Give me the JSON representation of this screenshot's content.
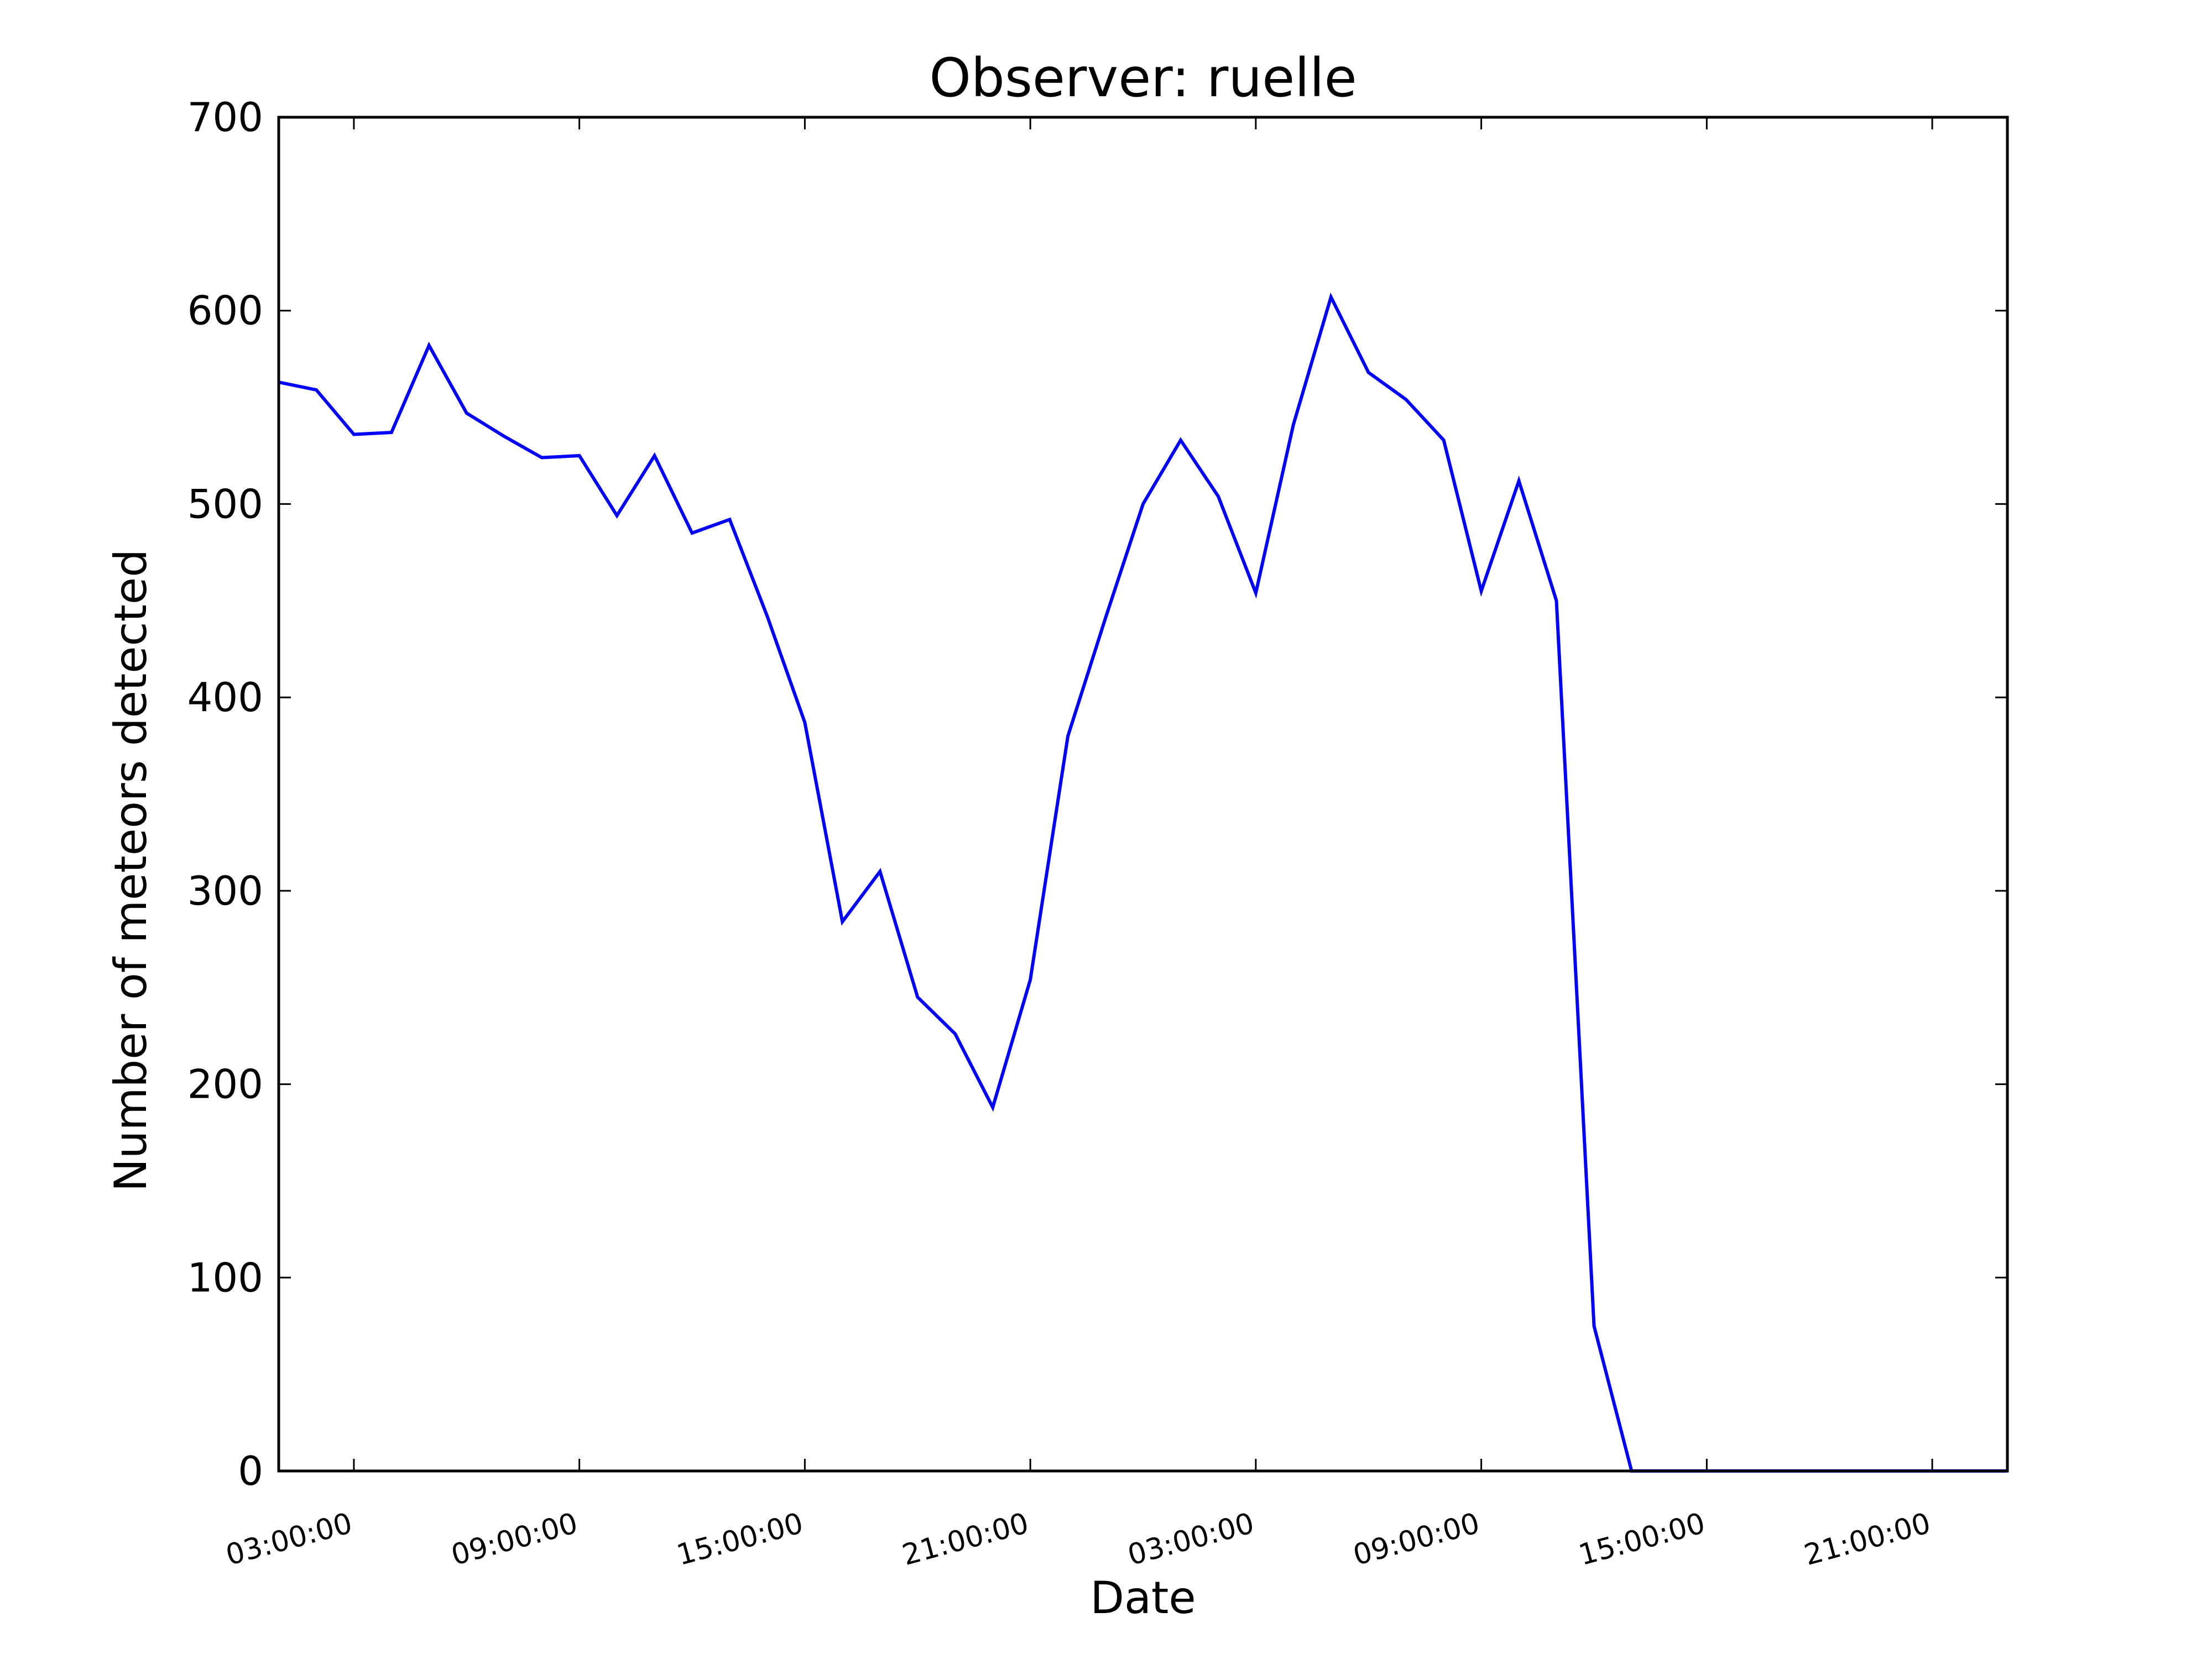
{
  "chart_data": {
    "type": "line",
    "title": "Observer: ruelle",
    "xlabel": "Date",
    "ylabel": "Number of meteors detected",
    "x_unit": "hours",
    "x_tick_labels": [
      "03:00:00",
      "09:00:00",
      "15:00:00",
      "21:00:00",
      "03:00:00",
      "09:00:00",
      "15:00:00",
      "21:00:00"
    ],
    "x_tick_hours": [
      3,
      9,
      15,
      21,
      27,
      33,
      39,
      45
    ],
    "xlim": [
      1,
      47
    ],
    "ylim": [
      0,
      700
    ],
    "y_ticks": [
      0,
      100,
      200,
      300,
      400,
      500,
      600,
      700
    ],
    "grid": false,
    "legend": "none",
    "line_color": "#0000ff",
    "series": [
      {
        "x": [
          1,
          2,
          3,
          4,
          5,
          6,
          7,
          8,
          9,
          10,
          11,
          12,
          13,
          14,
          15,
          16,
          17,
          18,
          19,
          20,
          21,
          22,
          23,
          24,
          25,
          26,
          27,
          28,
          29,
          30,
          31,
          32,
          33,
          34,
          35,
          36,
          37,
          38,
          39,
          40,
          41,
          42,
          43,
          44,
          45,
          46,
          47
        ],
        "values": [
          563,
          559,
          536,
          537,
          582,
          547,
          535,
          524,
          525,
          494,
          525,
          485,
          492,
          442,
          387,
          284,
          310,
          245,
          226,
          188,
          254,
          380,
          441,
          500,
          533,
          504,
          454,
          541,
          607,
          568,
          554,
          533,
          455,
          512,
          450,
          75,
          0,
          0,
          0,
          0,
          0,
          0,
          0,
          0,
          0,
          0,
          0
        ]
      }
    ]
  }
}
